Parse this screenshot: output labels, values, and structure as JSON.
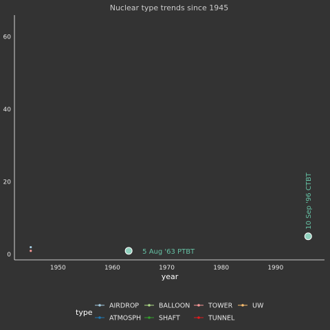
{
  "chart_data": {
    "type": "scatter",
    "title": "Nuclear type trends since 1945",
    "xlabel": "year",
    "ylabel": "",
    "xlim": [
      1942,
      1999
    ],
    "ylim": [
      -1.5,
      66
    ],
    "xticks": [
      1950,
      1960,
      1970,
      1980,
      1990
    ],
    "yticks": [
      0,
      20,
      40,
      60
    ],
    "grid": false,
    "points": [
      {
        "type": "AIRDROP",
        "x": 1945,
        "y": 2
      },
      {
        "type": "TOWER",
        "x": 1945,
        "y": 1
      }
    ],
    "annotations": [
      {
        "x": 1963,
        "y": 1,
        "label": "5 Aug '63 PTBT",
        "orientation": "horizontal"
      },
      {
        "x": 1996,
        "y": 5,
        "label": "10 Sep '96 CTBT",
        "orientation": "vertical"
      }
    ],
    "legend": {
      "title": "type",
      "position": "bottom",
      "entries": [
        {
          "label": "AIRDROP",
          "color": "#a6cee3"
        },
        {
          "label": "ATMOSPH",
          "color": "#1f78b4"
        },
        {
          "label": "BALLOON",
          "color": "#b2df8a"
        },
        {
          "label": "SHAFT",
          "color": "#33a02c"
        },
        {
          "label": "TOWER",
          "color": "#fb9a99"
        },
        {
          "label": "TUNNEL",
          "color": "#e31a1c"
        },
        {
          "label": "UW",
          "color": "#fdbf6f"
        }
      ]
    },
    "colors": {
      "background": "#333333",
      "annotation": "#66c2a5",
      "annotation_marker_fill": "#8fd0bd",
      "axis_line": "#ffffff"
    }
  }
}
